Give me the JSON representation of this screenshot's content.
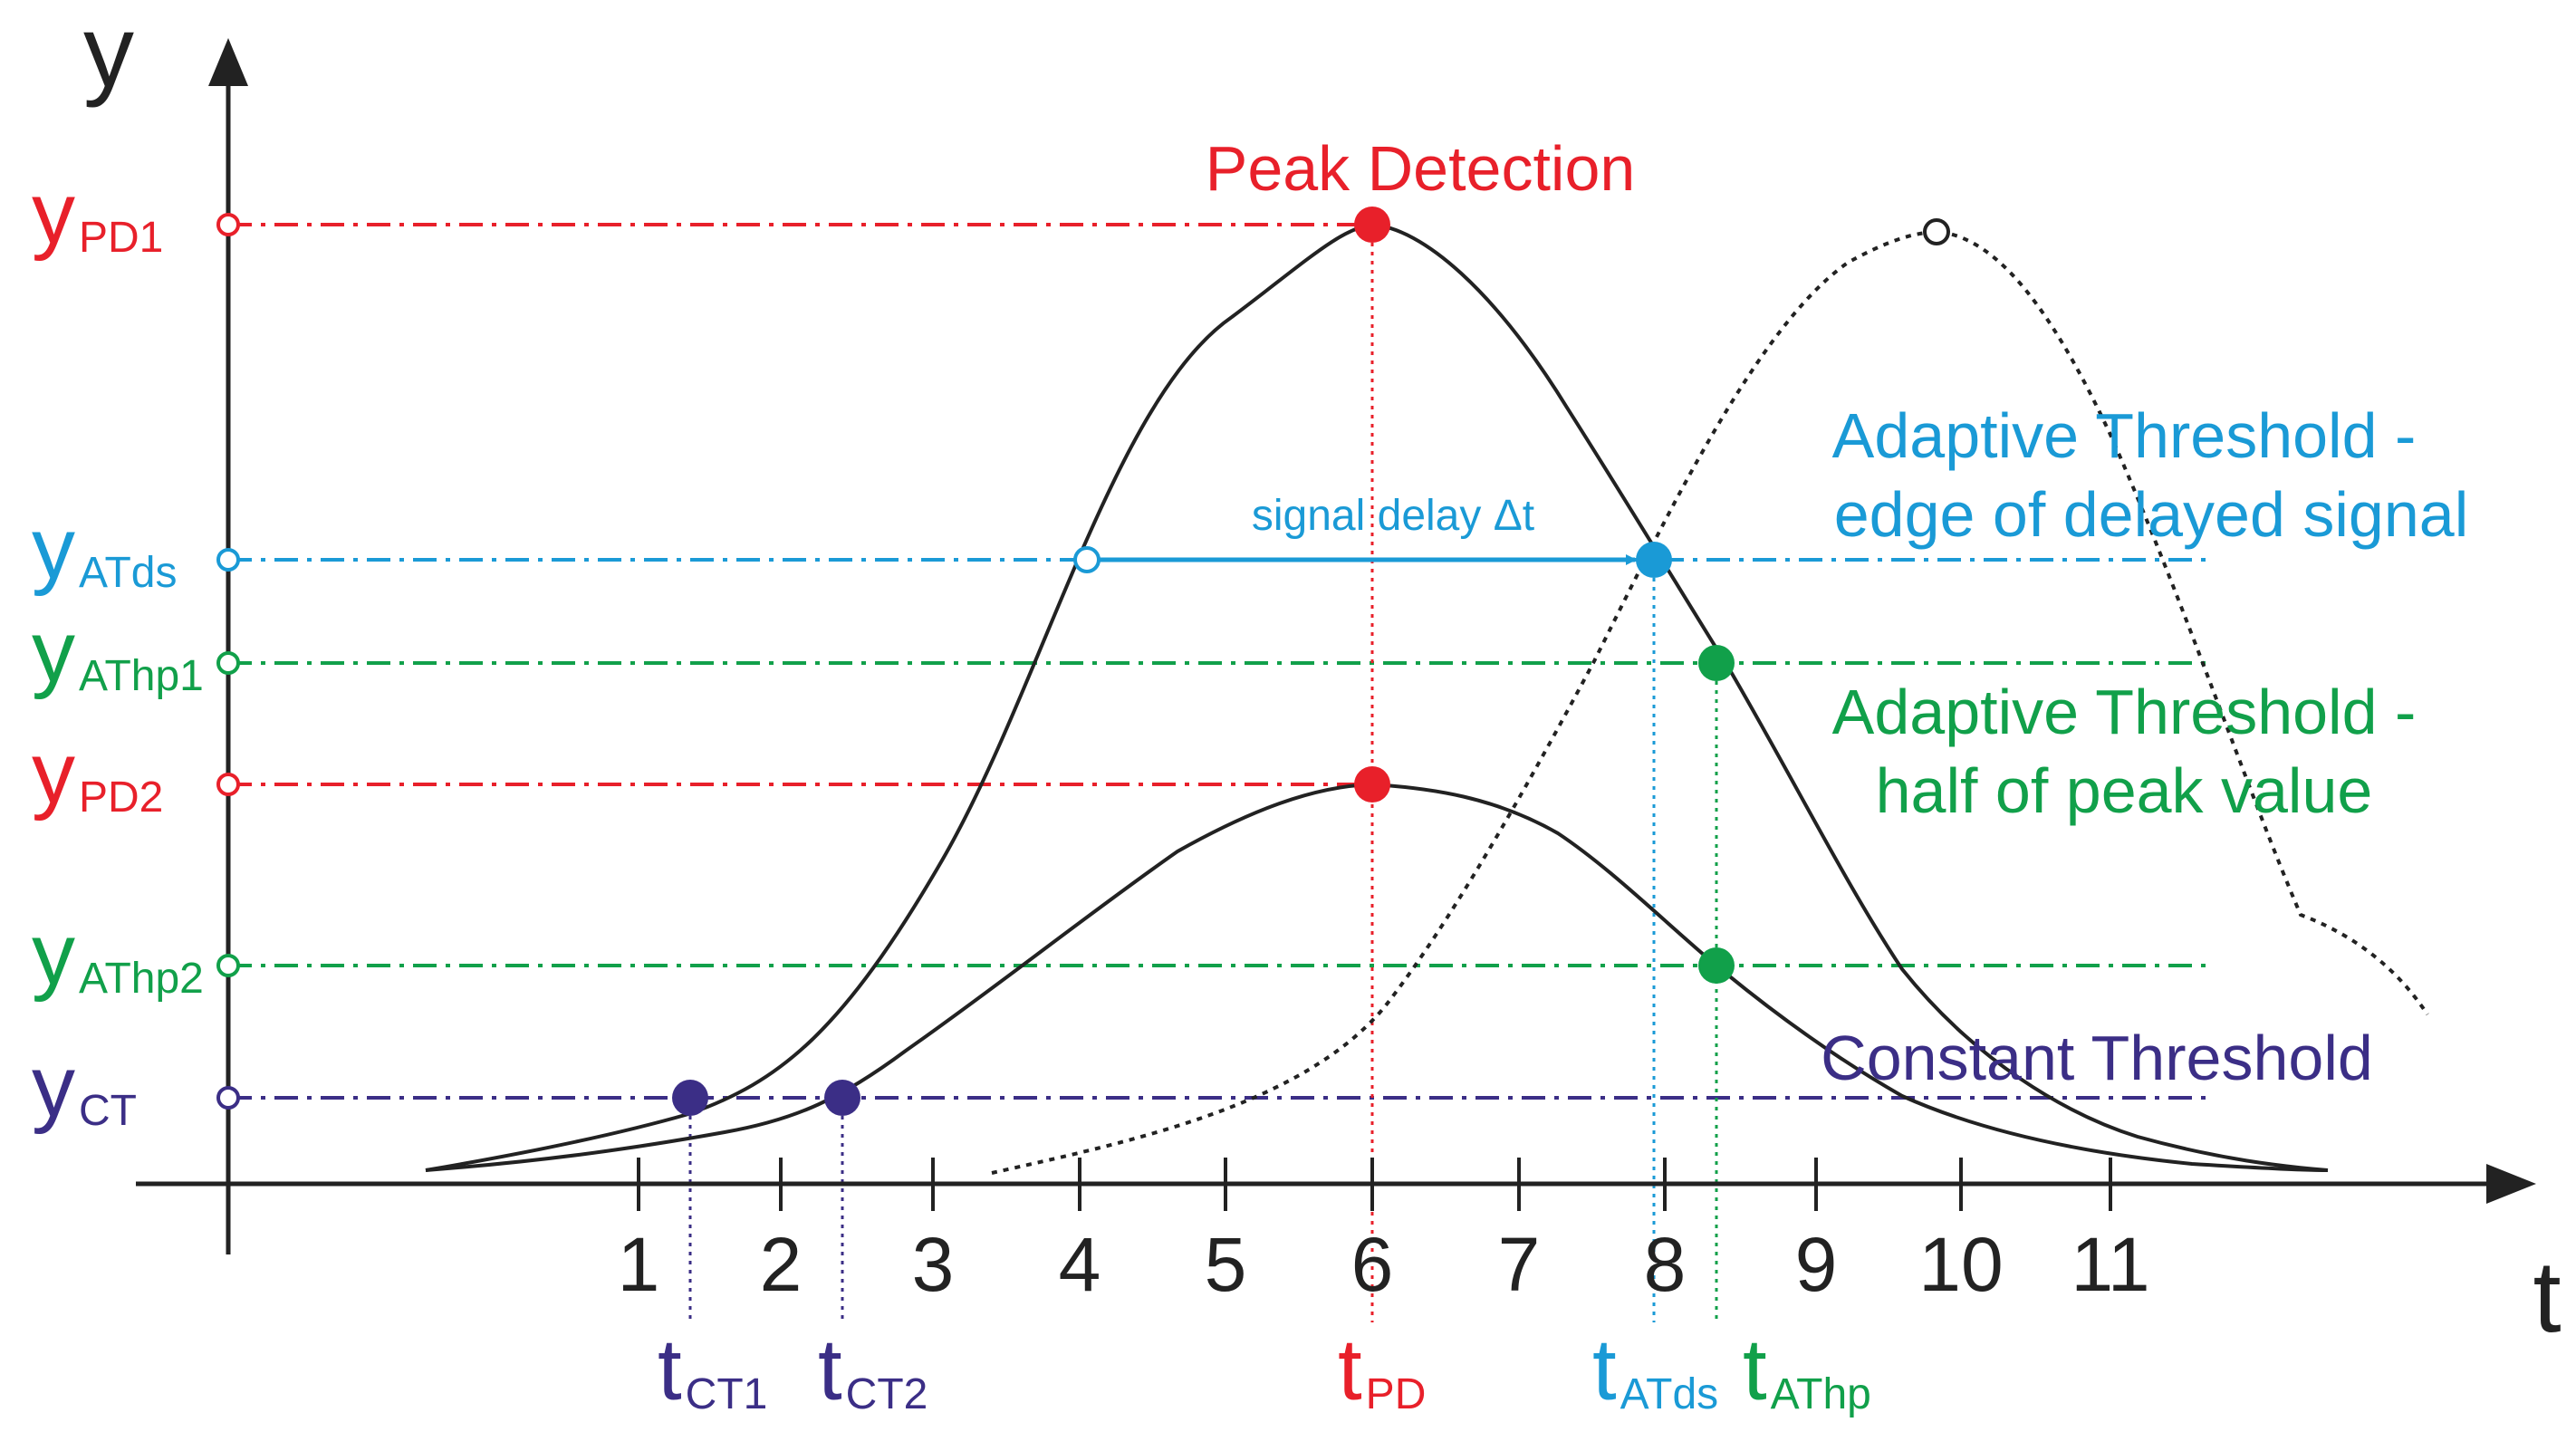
{
  "axes": {
    "y_axis_label": "y",
    "x_axis_label": "t",
    "x_ticks": [
      "1",
      "2",
      "3",
      "4",
      "5",
      "6",
      "7",
      "8",
      "9",
      "10",
      "11"
    ]
  },
  "y_levels": [
    {
      "id": "pd1",
      "base": "y",
      "sub": "PD1",
      "color": "#e8202a"
    },
    {
      "id": "atds",
      "base": "y",
      "sub": "ATds",
      "color": "#1a9ad6"
    },
    {
      "id": "athp1",
      "base": "y",
      "sub": "AThp1",
      "color": "#11a04a"
    },
    {
      "id": "pd2",
      "base": "y",
      "sub": "PD2",
      "color": "#e8202a"
    },
    {
      "id": "athp2",
      "base": "y",
      "sub": "AThp2",
      "color": "#11a04a"
    },
    {
      "id": "ct",
      "base": "y",
      "sub": "CT",
      "color": "#3b2e86"
    }
  ],
  "t_markers": [
    {
      "id": "ct1",
      "base": "t",
      "sub": "CT1",
      "color": "#3b2e86"
    },
    {
      "id": "ct2",
      "base": "t",
      "sub": "CT2",
      "color": "#3b2e86"
    },
    {
      "id": "pd",
      "base": "t",
      "sub": "PD",
      "color": "#e8202a"
    },
    {
      "id": "atds",
      "base": "t",
      "sub": "ATds",
      "color": "#1a9ad6"
    },
    {
      "id": "athp",
      "base": "t",
      "sub": "AThp",
      "color": "#11a04a"
    }
  ],
  "annotations": {
    "peak_detection": "Peak Detection",
    "adaptive_threshold_delayed_1": "Adaptive Threshold -",
    "adaptive_threshold_delayed_2": "edge of delayed signal",
    "signal_delay": "signal delay Δt",
    "adaptive_threshold_half_1": "Adaptive Threshold -",
    "adaptive_threshold_half_2": "half of peak value",
    "constant_threshold": "Constant Threshold"
  },
  "colors": {
    "red": "#e8202a",
    "blue": "#1a9ad6",
    "green": "#11a04a",
    "purple": "#3b2e86",
    "curve": "#222222"
  }
}
